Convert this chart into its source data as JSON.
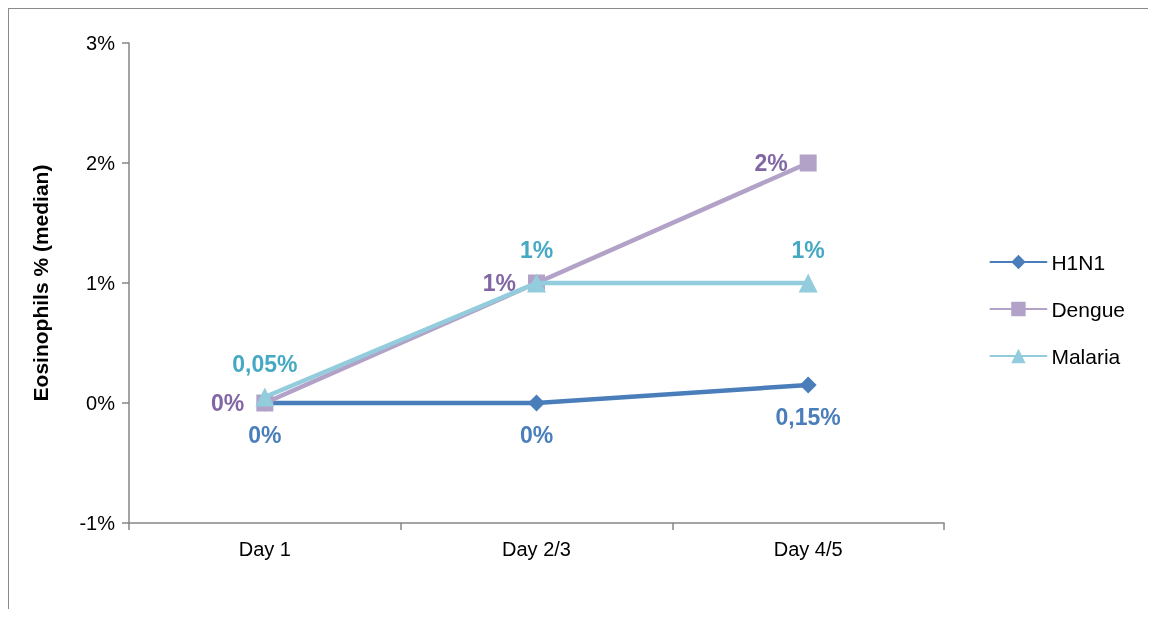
{
  "chart_data": {
    "type": "line",
    "ylabel": "Eosinophils % (median)",
    "categories": [
      "Day 1",
      "Day 2/3",
      "Day 4/5"
    ],
    "series": [
      {
        "name": "H1N1",
        "color": "#4a7ebb",
        "marker": "diamond",
        "values": [
          0,
          0,
          0.15
        ],
        "value_labels": [
          "0%",
          "0%",
          "0,15%"
        ]
      },
      {
        "name": "Dengue",
        "color": "#b3a2c7",
        "marker": "square",
        "values": [
          0,
          1,
          2
        ],
        "value_labels": [
          "0%",
          "1%",
          "2%"
        ]
      },
      {
        "name": "Malaria",
        "color": "#93cddd",
        "marker": "triangle",
        "values": [
          0.05,
          1,
          1
        ],
        "value_labels": [
          "0,05%",
          "1%",
          "1%"
        ]
      }
    ],
    "ylim": [
      -1,
      3
    ],
    "yticks": [
      {
        "value": -1,
        "label": "-1%"
      },
      {
        "value": 0,
        "label": "0%"
      },
      {
        "value": 1,
        "label": "1%"
      },
      {
        "value": 2,
        "label": "2%"
      },
      {
        "value": 3,
        "label": "3%"
      }
    ],
    "grid": false,
    "legend": "right",
    "line_style": "solid"
  }
}
